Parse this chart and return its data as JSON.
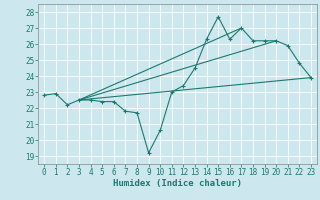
{
  "xlabel": "Humidex (Indice chaleur)",
  "background_color": "#cce8ee",
  "grid_color": "#ffffff",
  "line_color": "#1a7a6e",
  "xlim": [
    -0.5,
    23.5
  ],
  "ylim": [
    18.5,
    28.5
  ],
  "yticks": [
    19,
    20,
    21,
    22,
    23,
    24,
    25,
    26,
    27,
    28
  ],
  "xticks": [
    0,
    1,
    2,
    3,
    4,
    5,
    6,
    7,
    8,
    9,
    10,
    11,
    12,
    13,
    14,
    15,
    16,
    17,
    18,
    19,
    20,
    21,
    22,
    23
  ],
  "lines": [
    {
      "x": [
        0,
        1,
        2,
        3,
        4,
        5,
        6,
        7,
        8,
        9,
        10,
        11,
        12,
        13,
        14,
        15,
        16,
        17,
        18,
        19,
        20,
        21,
        22,
        23
      ],
      "y": [
        22.8,
        22.9,
        22.2,
        22.5,
        22.5,
        22.4,
        22.4,
        21.8,
        21.7,
        19.2,
        20.6,
        23.0,
        23.4,
        24.5,
        26.3,
        27.7,
        26.3,
        27.0,
        26.2,
        26.2,
        26.2,
        25.9,
        24.8,
        23.9
      ],
      "marker": true
    },
    {
      "x": [
        3,
        23
      ],
      "y": [
        22.5,
        23.9
      ],
      "marker": false
    },
    {
      "x": [
        3,
        20
      ],
      "y": [
        22.5,
        26.2
      ],
      "marker": false
    },
    {
      "x": [
        3,
        17
      ],
      "y": [
        22.5,
        27.0
      ],
      "marker": false
    }
  ],
  "tick_fontsize": 5.5,
  "xlabel_fontsize": 6.5
}
